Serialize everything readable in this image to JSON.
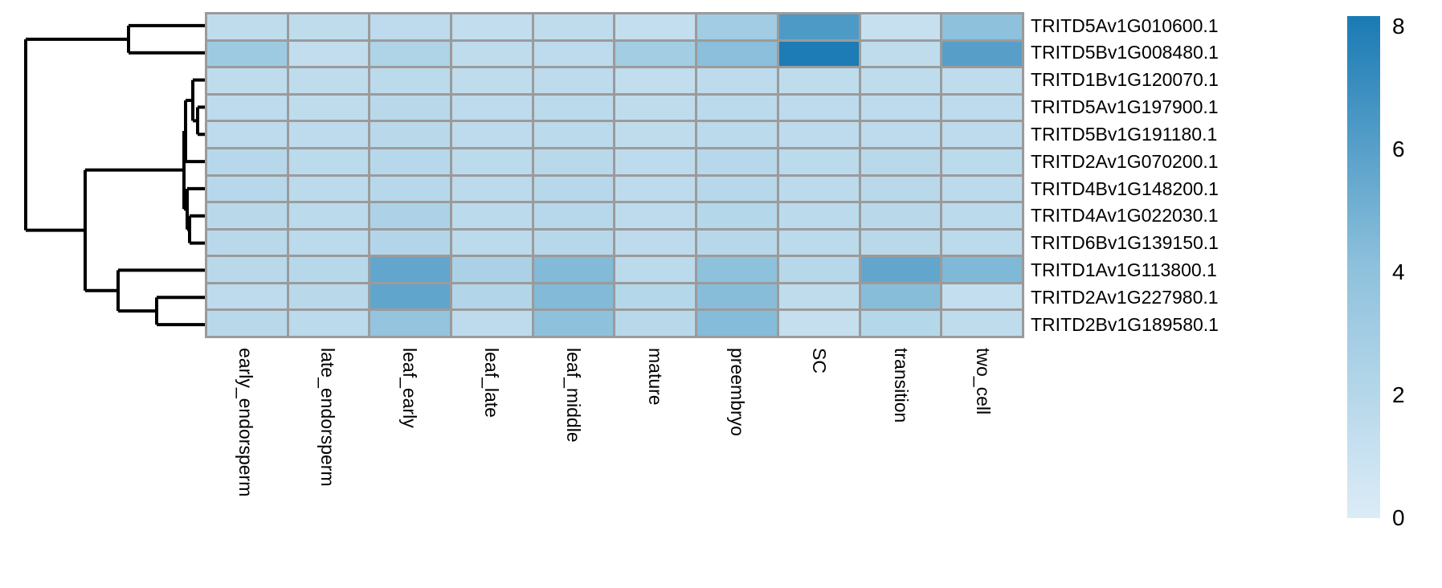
{
  "figure": {
    "kind": "clustered expression heatmap",
    "background_color": "#ffffff",
    "grid_color": "#9b9b9b",
    "dendrogram_color": "#000000"
  },
  "chart_data": {
    "type": "heatmap",
    "title": "",
    "xlabel": "",
    "ylabel": "",
    "columns": [
      "early_endorsperm",
      "late_endorsperm",
      "leaf_early",
      "leaf_late",
      "leaf_middle",
      "mature",
      "preembryo",
      "SC",
      "transition",
      "two_cell"
    ],
    "rows": [
      "TRITD5Av1G010600.1",
      "TRITD5Bv1G008480.1",
      "TRITD1Bv1G120070.1",
      "TRITD5Av1G197900.1",
      "TRITD5Bv1G191180.1",
      "TRITD2Av1G070200.1",
      "TRITD4Bv1G148200.1",
      "TRITD4Av1G022030.1",
      "TRITD6Bv1G139150.1",
      "TRITD1Av1G113800.1",
      "TRITD2Av1G227980.1",
      "TRITD2Bv1G189580.1"
    ],
    "values": [
      [
        1.5,
        1.5,
        1.6,
        1.4,
        1.5,
        1.3,
        3.0,
        6.2,
        1.1,
        4.0
      ],
      [
        3.2,
        1.4,
        2.3,
        1.5,
        1.6,
        2.9,
        4.1,
        7.9,
        1.5,
        5.9
      ],
      [
        1.5,
        1.5,
        1.7,
        1.5,
        1.6,
        1.4,
        1.6,
        1.5,
        1.5,
        1.5
      ],
      [
        1.6,
        1.5,
        1.8,
        1.6,
        1.7,
        1.5,
        1.7,
        1.6,
        1.6,
        1.6
      ],
      [
        1.6,
        1.6,
        1.8,
        1.6,
        1.7,
        1.5,
        1.7,
        1.6,
        1.6,
        1.6
      ],
      [
        1.9,
        1.7,
        1.9,
        1.7,
        1.8,
        1.6,
        1.9,
        1.7,
        1.8,
        1.7
      ],
      [
        1.9,
        1.7,
        1.9,
        1.7,
        1.9,
        1.6,
        1.9,
        1.7,
        1.8,
        1.7
      ],
      [
        1.8,
        1.7,
        2.4,
        1.7,
        1.9,
        1.6,
        2.0,
        1.7,
        1.8,
        1.7
      ],
      [
        1.8,
        1.7,
        2.1,
        1.7,
        1.9,
        1.6,
        1.9,
        1.7,
        1.8,
        1.7
      ],
      [
        1.8,
        1.9,
        5.5,
        2.5,
        4.4,
        1.7,
        4.0,
        1.9,
        5.5,
        4.5
      ],
      [
        1.6,
        1.8,
        5.6,
        2.1,
        4.4,
        2.0,
        4.2,
        1.5,
        4.2,
        1.3
      ],
      [
        1.8,
        1.7,
        3.7,
        1.6,
        4.0,
        1.8,
        4.3,
        1.2,
        2.0,
        1.5
      ]
    ],
    "value_range": [
      0,
      8
    ],
    "color_stops": [
      [
        0,
        "#dcecf7"
      ],
      [
        4,
        "#8ec1dc"
      ],
      [
        8,
        "#1a7ab4"
      ]
    ],
    "colorbar": {
      "position": "right",
      "ticks": [
        8,
        6,
        4,
        2,
        0
      ]
    },
    "legend_position": "right",
    "grid": "gray cell borders",
    "row_dendrogram": {
      "orientation": "left",
      "topology": "(( r1, r2 ), ((( ( r3,(r4,r5) ), r6 ), ( r7,(r8,r9) )), ( r10,(r11,r12) )))",
      "segments": [
        [
          160,
          0.5,
          255,
          0.5
        ],
        [
          160,
          1.5,
          255,
          1.5
        ],
        [
          240,
          2.5,
          255,
          2.5
        ],
        [
          246,
          3.5,
          255,
          3.5
        ],
        [
          246,
          4.5,
          255,
          4.5
        ],
        [
          231,
          5.5,
          255,
          5.5
        ],
        [
          233,
          6.5,
          255,
          6.5
        ],
        [
          236,
          7.5,
          255,
          7.5
        ],
        [
          236,
          8.5,
          255,
          8.5
        ],
        [
          147,
          9.5,
          255,
          9.5
        ],
        [
          195,
          10.5,
          255,
          10.5
        ],
        [
          195,
          11.5,
          255,
          11.5
        ],
        [
          160,
          0.5,
          160,
          1.5
        ],
        [
          32,
          1.0,
          160,
          1.0
        ],
        [
          32,
          1.0,
          32,
          8.03
        ],
        [
          32,
          8.03,
          106,
          8.03
        ],
        [
          246,
          3.5,
          246,
          4.5
        ],
        [
          240,
          4.0,
          246,
          4.0
        ],
        [
          240,
          2.5,
          240,
          4.0
        ],
        [
          231,
          3.25,
          240,
          3.25
        ],
        [
          231,
          3.25,
          231,
          5.5
        ],
        [
          229,
          4.375,
          231,
          4.375
        ],
        [
          229,
          4.375,
          229,
          7.25
        ],
        [
          229,
          7.25,
          233,
          7.25
        ],
        [
          233,
          6.5,
          233,
          8.0
        ],
        [
          233,
          8.0,
          236,
          8.0
        ],
        [
          236,
          7.5,
          236,
          8.5
        ],
        [
          106,
          5.8125,
          229,
          5.8125
        ],
        [
          106,
          5.8125,
          106,
          10.25
        ],
        [
          106,
          10.25,
          147,
          10.25
        ],
        [
          147,
          9.5,
          147,
          11.0
        ],
        [
          147,
          11.0,
          195,
          11.0
        ],
        [
          195,
          10.5,
          195,
          11.5
        ]
      ]
    }
  }
}
